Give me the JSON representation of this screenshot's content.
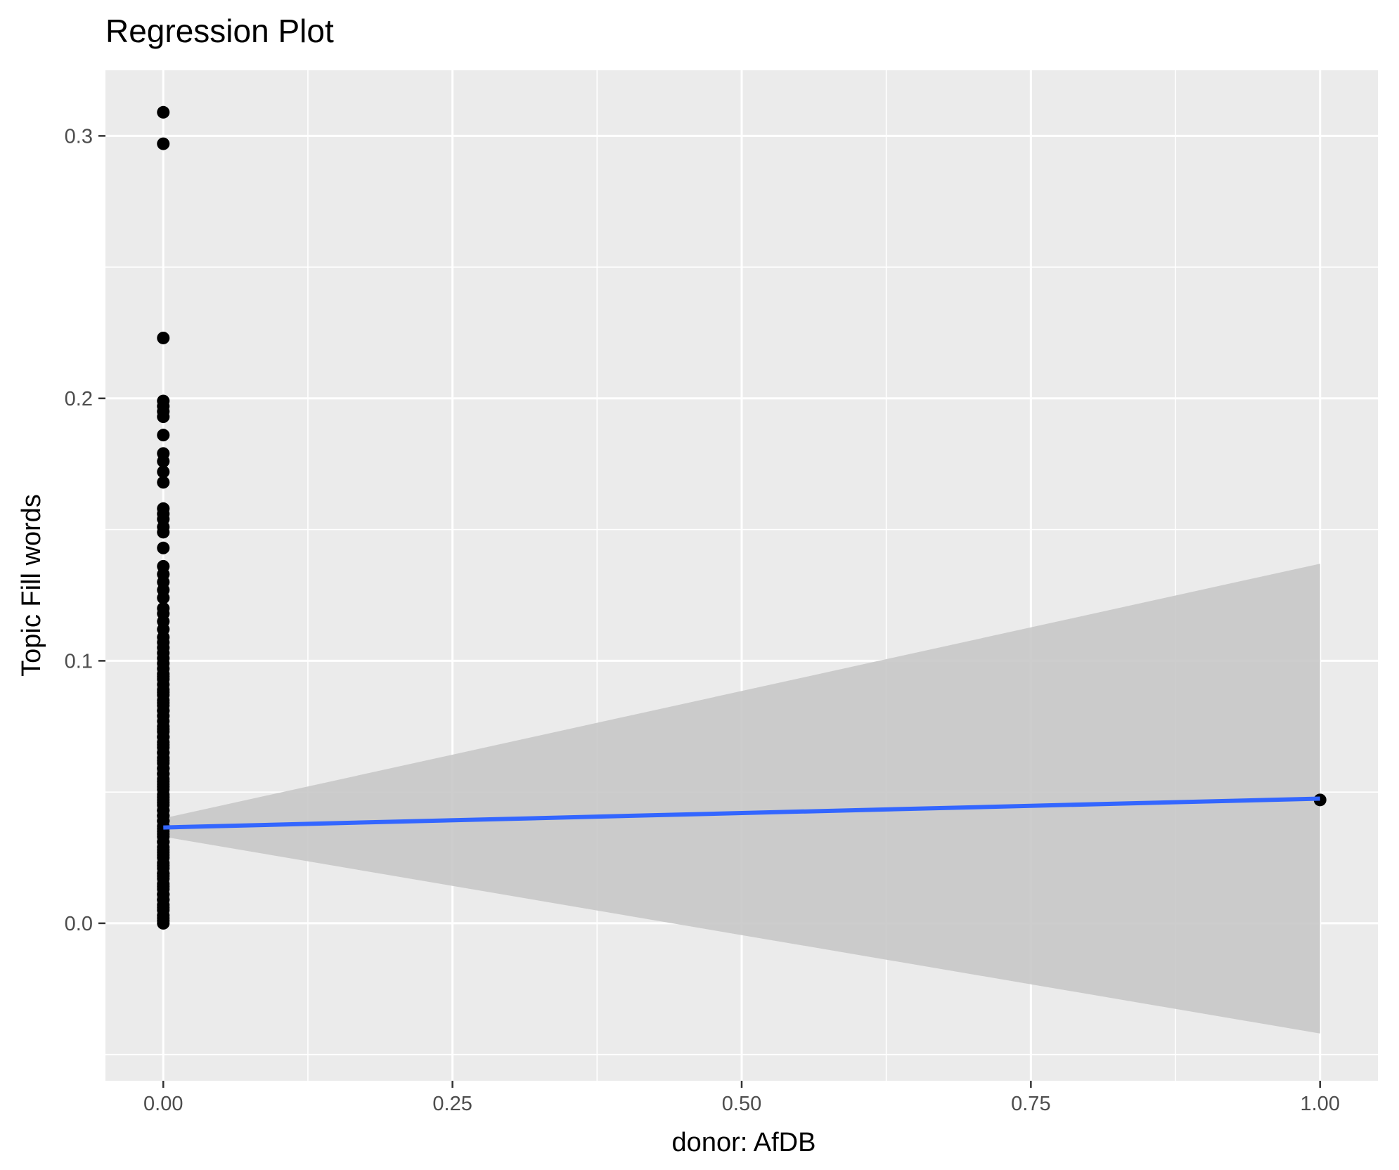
{
  "chart_data": {
    "type": "scatter",
    "title": "Regression Plot",
    "xlabel": "donor: AfDB",
    "ylabel": "Topic Fill words",
    "xlim": [
      -0.05,
      1.05
    ],
    "ylim": [
      -0.06,
      0.325
    ],
    "x_ticks": [
      0.0,
      0.25,
      0.5,
      0.75,
      1.0
    ],
    "x_tick_labels": [
      "0.00",
      "0.25",
      "0.50",
      "0.75",
      "1.00"
    ],
    "y_ticks": [
      0.0,
      0.1,
      0.2,
      0.3
    ],
    "y_tick_labels": [
      "0.0",
      "0.1",
      "0.2",
      "0.3"
    ],
    "grid": true,
    "legend": "none",
    "colors": {
      "panel": "#ebebeb",
      "grid": "#ffffff",
      "points": "#000000",
      "fit_line": "#3366ff",
      "confidence_band": "#c8c8c8"
    },
    "series": [
      {
        "type": "scatter",
        "x": [
          0,
          0,
          0,
          0,
          0,
          0,
          0,
          0,
          0,
          0,
          0,
          0,
          0,
          0,
          0,
          0,
          0,
          0,
          0,
          0,
          0,
          0,
          0,
          0,
          0,
          0,
          0,
          0,
          0,
          0,
          0,
          0,
          0,
          0,
          0,
          0,
          0,
          0,
          0,
          0,
          0,
          0,
          0,
          0,
          0,
          0,
          0,
          0,
          0,
          0,
          0,
          0,
          0,
          0,
          0,
          0,
          0,
          0,
          0,
          0,
          0,
          0,
          0,
          0,
          0,
          0,
          0,
          0,
          0,
          0,
          0,
          0,
          0,
          0,
          0,
          0,
          0,
          0,
          0,
          0,
          0,
          0,
          0,
          0,
          0,
          0,
          0,
          0,
          0,
          0,
          0,
          0,
          0,
          0,
          0,
          0,
          0,
          0,
          0,
          0,
          0,
          0,
          0,
          0,
          0,
          0,
          0,
          0,
          0,
          0,
          0,
          0,
          0,
          0,
          1
        ],
        "y": [
          0.309,
          0.297,
          0.223,
          0.199,
          0.197,
          0.195,
          0.193,
          0.186,
          0.179,
          0.176,
          0.172,
          0.168,
          0.158,
          0.156,
          0.154,
          0.151,
          0.149,
          0.143,
          0.136,
          0.133,
          0.13,
          0.127,
          0.124,
          0.12,
          0.118,
          0.115,
          0.112,
          0.109,
          0.107,
          0.105,
          0.103,
          0.101,
          0.099,
          0.097,
          0.095,
          0.093,
          0.091,
          0.089,
          0.087,
          0.085,
          0.083,
          0.081,
          0.079,
          0.077,
          0.075,
          0.073,
          0.071,
          0.069,
          0.067,
          0.065,
          0.063,
          0.061,
          0.059,
          0.057,
          0.055,
          0.053,
          0.051,
          0.049,
          0.047,
          0.045,
          0.043,
          0.041,
          0.039,
          0.037,
          0.035,
          0.033,
          0.031,
          0.029,
          0.027,
          0.025,
          0.023,
          0.021,
          0.019,
          0.017,
          0.015,
          0.013,
          0.011,
          0.009,
          0.007,
          0.005,
          0.003,
          0.001,
          0.0,
          0.034,
          0.062,
          0.088,
          0.011,
          0.046,
          0.028,
          0.074,
          0.052,
          0.006,
          0.018,
          0.039,
          0.068,
          0.094,
          0.081,
          0.057,
          0.022,
          0.014,
          0.031,
          0.043,
          0.071,
          0.048,
          0.026,
          0.009,
          0.059,
          0.084,
          0.036,
          0.002,
          0.065,
          0.041,
          0.019,
          0.054,
          0.047
        ]
      },
      {
        "type": "line",
        "name": "",
        "x": [
          0,
          1
        ],
        "y": [
          0.0365,
          0.0475
        ]
      }
    ],
    "confidence_band": {
      "x": [
        0,
        1
      ],
      "lower": [
        0.033,
        -0.042
      ],
      "upper": [
        0.04,
        0.137
      ]
    }
  }
}
